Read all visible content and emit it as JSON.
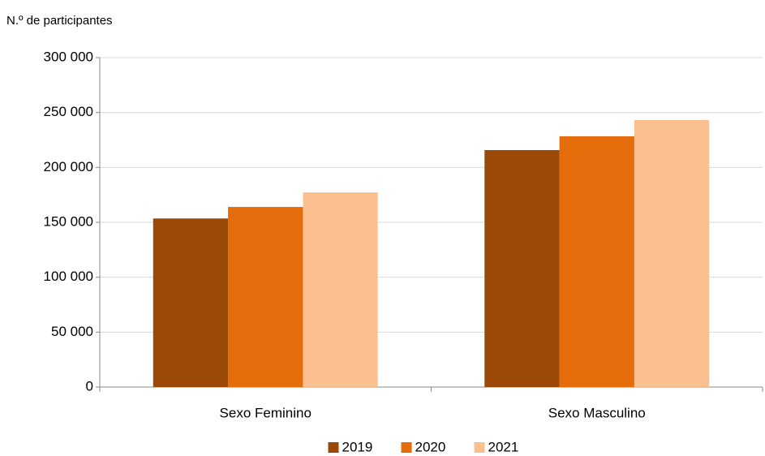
{
  "chart_data": {
    "type": "bar",
    "y_label": "N.º de participantes",
    "categories": [
      "Sexo Feminino",
      "Sexo Masculino"
    ],
    "series": [
      {
        "name": "2019",
        "color": "#9a4a06",
        "values": [
          153500,
          215800
        ]
      },
      {
        "name": "2020",
        "color": "#e46c0a",
        "values": [
          164000,
          228300
        ]
      },
      {
        "name": "2021",
        "color": "#fac090",
        "values": [
          177300,
          243100
        ]
      }
    ],
    "ylim": [
      0,
      300000
    ],
    "yticks": [
      0,
      {
        "value": 50000,
        "label": "50 000"
      },
      {
        "value": 100000,
        "label": "100 000"
      },
      {
        "value": 150000,
        "label": "150 000"
      },
      {
        "value": 200000,
        "label": "200 000"
      },
      {
        "value": 250000,
        "label": "250 000"
      },
      {
        "value": 300000,
        "label": "300 000"
      }
    ],
    "grid": true,
    "legend": "bottom"
  }
}
